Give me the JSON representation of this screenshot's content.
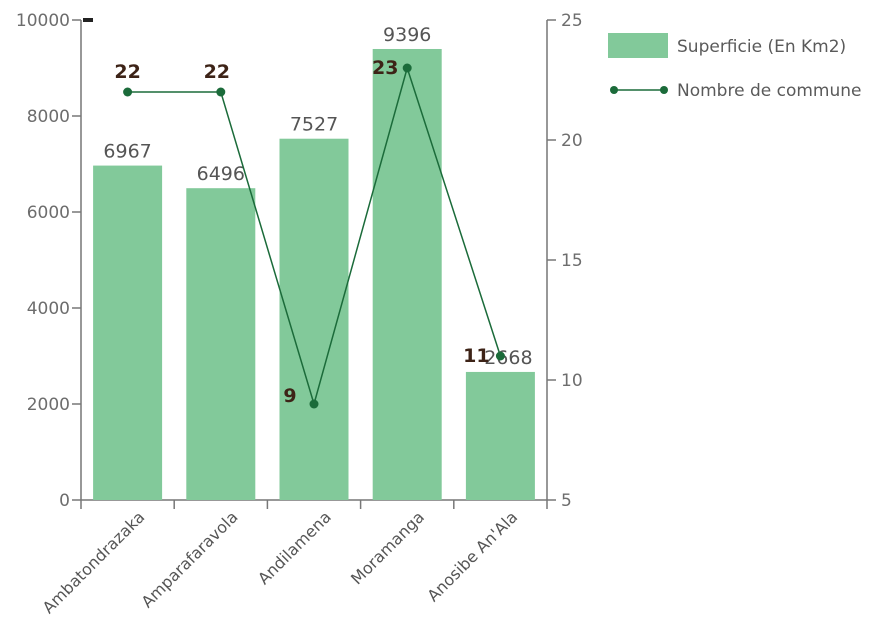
{
  "chart_data": {
    "type": "bar",
    "categories": [
      "Ambatondrazaka",
      "Amparafaravola",
      "Andilamena",
      "Moramanga",
      "Anosibe An'Ala"
    ],
    "series": [
      {
        "name": "Superficie (En Km2)",
        "type": "bar",
        "axis": "left",
        "values": [
          6967,
          6496,
          7527,
          9396,
          2668
        ],
        "color": "#82c99a"
      },
      {
        "name": "Nombre de commune",
        "type": "line",
        "axis": "right",
        "values": [
          22,
          22,
          9,
          23,
          11
        ],
        "color": "#1b6b3a"
      }
    ],
    "bar_labels": [
      "6967",
      "6496",
      "7527",
      "9396",
      "2668"
    ],
    "line_labels": [
      "22",
      "22",
      "9",
      "23",
      "11"
    ],
    "y_left": {
      "min": 0,
      "max": 10000,
      "ticks": [
        "0",
        "2000",
        "4000",
        "6000",
        "8000",
        "10000"
      ]
    },
    "y_right": {
      "min": 5,
      "max": 25,
      "ticks": [
        "5",
        "10",
        "15",
        "20",
        "25"
      ]
    },
    "legend": {
      "position": "top-right"
    },
    "grid": false
  }
}
